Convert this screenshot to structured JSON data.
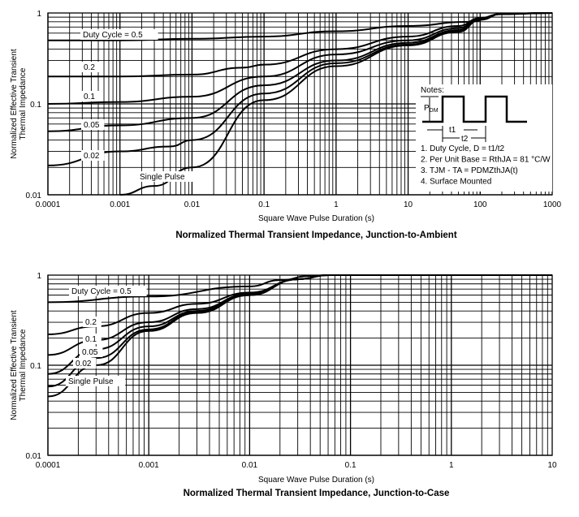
{
  "chart_data": [
    {
      "type": "line",
      "title": "Normalized Thermal Transient Impedance, Junction-to-Ambient",
      "xlabel": "Square Wave Pulse Duration (s)",
      "ylabel": [
        "Normalized Effective Transient",
        "Thermal Impedance"
      ],
      "xscale": "log",
      "yscale": "log",
      "xlim": [
        0.0001,
        1000
      ],
      "ylim": [
        0.01,
        1
      ],
      "grid": true,
      "xticks": [
        "0.0001",
        "0.001",
        "0.01",
        "0.1",
        "1",
        "10",
        "100",
        "1000"
      ],
      "yticks": [
        "1",
        "0.1",
        "0.01"
      ],
      "series": [
        {
          "name": "Duty Cycle = 0.5",
          "x": [
            0.0001,
            0.001,
            0.01,
            0.1,
            1,
            10,
            70,
            200,
            1000
          ],
          "y": [
            0.5,
            0.5,
            0.52,
            0.55,
            0.63,
            0.72,
            0.8,
            0.97,
            1
          ]
        },
        {
          "name": "0.2",
          "x": [
            0.0001,
            0.001,
            0.01,
            0.05,
            0.1,
            1,
            10,
            50,
            100,
            200,
            1000
          ],
          "y": [
            0.2,
            0.2,
            0.21,
            0.25,
            0.27,
            0.4,
            0.55,
            0.72,
            0.88,
            0.98,
            1
          ]
        },
        {
          "name": "0.1",
          "x": [
            0.0001,
            0.001,
            0.01,
            0.1,
            1,
            10,
            50,
            100,
            200,
            1000
          ],
          "y": [
            0.1,
            0.105,
            0.12,
            0.2,
            0.35,
            0.5,
            0.68,
            0.87,
            0.98,
            1
          ]
        },
        {
          "name": "0.05",
          "x": [
            0.0001,
            0.001,
            0.01,
            0.1,
            1,
            10,
            50,
            100,
            200,
            1000
          ],
          "y": [
            0.05,
            0.058,
            0.07,
            0.16,
            0.3,
            0.47,
            0.65,
            0.86,
            0.98,
            1
          ]
        },
        {
          "name": "0.02",
          "x": [
            0.0001,
            0.001,
            0.005,
            0.01,
            0.1,
            1,
            10,
            50,
            100,
            200,
            1000
          ],
          "y": [
            0.021,
            0.03,
            0.034,
            0.04,
            0.13,
            0.28,
            0.45,
            0.63,
            0.85,
            0.98,
            1
          ]
        },
        {
          "name": "Single Pulse",
          "x": [
            0.001,
            0.003,
            0.01,
            0.1,
            1,
            10,
            50,
            100,
            200,
            1000
          ],
          "y": [
            0.01,
            0.0125,
            0.02,
            0.11,
            0.26,
            0.44,
            0.62,
            0.84,
            0.98,
            1
          ]
        }
      ],
      "notes": {
        "header": "Notes:",
        "pdm": "PDM",
        "t1": "t1",
        "t2": "t2",
        "items": [
          "1. Duty Cycle, D = t1/t2",
          "2. Per Unit Base = RthJA = 81 °C/W",
          "3. TJM - TA = PDMZthJA(t)",
          "4. Surface Mounted"
        ]
      }
    },
    {
      "type": "line",
      "title": "Normalized Thermal Transient Impedance, Junction-to-Case",
      "xlabel": "Square Wave Pulse Duration (s)",
      "ylabel": [
        "Normalized Effective Transient",
        "Thermal Impedance"
      ],
      "xscale": "log",
      "yscale": "log",
      "xlim": [
        0.0001,
        10
      ],
      "ylim": [
        0.01,
        1
      ],
      "grid": true,
      "xticks": [
        "0.0001",
        "0.001",
        "0.01",
        "0.1",
        "1",
        "10"
      ],
      "yticks": [
        "1",
        "0.1",
        "0.01"
      ],
      "series": [
        {
          "name": "Duty Cycle = 0.5",
          "x": [
            0.0001,
            0.001,
            0.01,
            0.02,
            0.04,
            0.06,
            10
          ],
          "y": [
            0.5,
            0.58,
            0.75,
            0.88,
            0.98,
            1,
            1
          ]
        },
        {
          "name": "0.2",
          "x": [
            0.0001,
            0.0003,
            0.001,
            0.003,
            0.01,
            0.03,
            0.06,
            10
          ],
          "y": [
            0.22,
            0.27,
            0.38,
            0.48,
            0.64,
            0.9,
            1,
            1
          ]
        },
        {
          "name": "0.1",
          "x": [
            0.0001,
            0.0003,
            0.001,
            0.003,
            0.01,
            0.03,
            0.06,
            10
          ],
          "y": [
            0.13,
            0.19,
            0.3,
            0.42,
            0.62,
            0.9,
            1,
            1
          ]
        },
        {
          "name": "0.05",
          "x": [
            0.0001,
            0.0003,
            0.001,
            0.003,
            0.01,
            0.03,
            0.06,
            10
          ],
          "y": [
            0.08,
            0.15,
            0.27,
            0.4,
            0.61,
            0.9,
            1,
            1
          ]
        },
        {
          "name": "0.02",
          "x": [
            0.0001,
            0.0003,
            0.001,
            0.003,
            0.01,
            0.03,
            0.06,
            10
          ],
          "y": [
            0.058,
            0.12,
            0.25,
            0.39,
            0.6,
            0.9,
            1,
            1
          ]
        },
        {
          "name": "Single Pulse",
          "x": [
            0.0001,
            0.0003,
            0.001,
            0.003,
            0.01,
            0.03,
            0.06,
            10
          ],
          "y": [
            0.045,
            0.1,
            0.24,
            0.38,
            0.6,
            0.9,
            1,
            1
          ]
        }
      ]
    }
  ]
}
